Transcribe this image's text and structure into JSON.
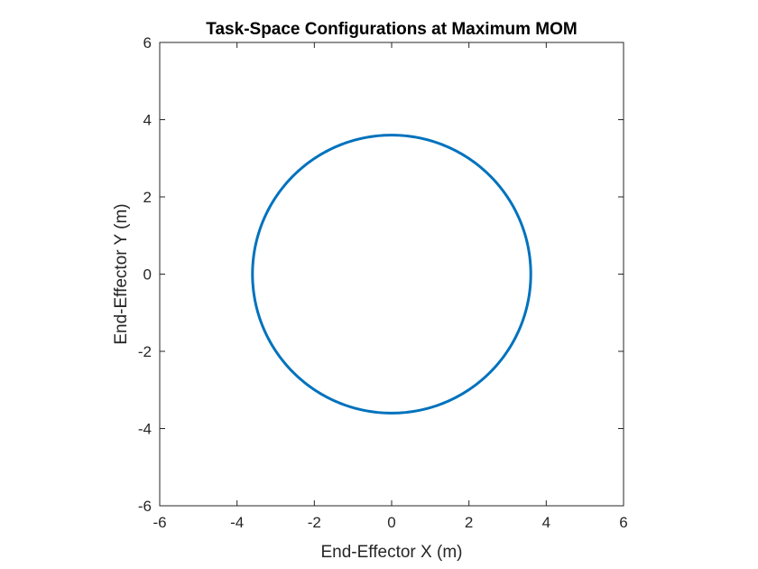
{
  "chart_data": {
    "type": "line",
    "title": "Task-Space Configurations at Maximum MOM",
    "xlabel": "End-Effector X (m)",
    "ylabel": "End-Effector Y (m)",
    "xlim": [
      -6,
      6
    ],
    "ylim": [
      -6,
      6
    ],
    "xticks": [
      -6,
      -4,
      -2,
      0,
      2,
      4,
      6
    ],
    "yticks": [
      -6,
      -4,
      -2,
      0,
      2,
      4,
      6
    ],
    "xtick_labels": [
      "-6",
      "-4",
      "-2",
      "0",
      "2",
      "4",
      "6"
    ],
    "ytick_labels": [
      "-6",
      "-4",
      "-2",
      "0",
      "2",
      "4",
      "6"
    ],
    "grid": false,
    "legend": "none",
    "series": [
      {
        "shape": "circle",
        "center": [
          0,
          0
        ],
        "radius": 3.6,
        "color": "#0072BD"
      }
    ]
  }
}
